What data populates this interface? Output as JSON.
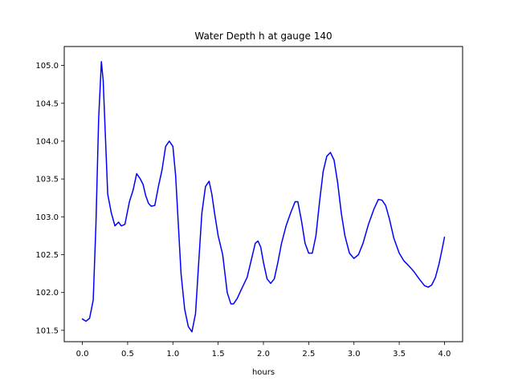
{
  "chart_data": {
    "type": "line",
    "title": "Water Depth h at gauge 140",
    "xlabel": "hours",
    "ylabel": "",
    "xlim": [
      -0.2,
      4.2
    ],
    "ylim": [
      101.35,
      105.25
    ],
    "x_ticks": [
      0.0,
      0.5,
      1.0,
      1.5,
      2.0,
      2.5,
      3.0,
      3.5,
      4.0
    ],
    "x_tick_labels": [
      "0.0",
      "0.5",
      "1.0",
      "1.5",
      "2.0",
      "2.5",
      "3.0",
      "3.5",
      "4.0"
    ],
    "y_ticks": [
      101.5,
      102.0,
      102.5,
      103.0,
      103.5,
      104.0,
      104.5,
      105.0
    ],
    "y_tick_labels": [
      "101.5",
      "102.0",
      "102.5",
      "103.0",
      "103.5",
      "104.0",
      "104.5",
      "105.0"
    ],
    "grid": false,
    "legend": "none",
    "series": [
      {
        "color": "#0000ff",
        "x": [
          0.0,
          0.04,
          0.08,
          0.12,
          0.15,
          0.18,
          0.21,
          0.23,
          0.25,
          0.28,
          0.32,
          0.36,
          0.4,
          0.43,
          0.47,
          0.52,
          0.56,
          0.6,
          0.64,
          0.67,
          0.7,
          0.73,
          0.76,
          0.8,
          0.84,
          0.88,
          0.92,
          0.96,
          1.0,
          1.03,
          1.06,
          1.09,
          1.13,
          1.17,
          1.21,
          1.25,
          1.28,
          1.32,
          1.36,
          1.4,
          1.43,
          1.46,
          1.5,
          1.55,
          1.6,
          1.64,
          1.67,
          1.71,
          1.76,
          1.82,
          1.87,
          1.91,
          1.94,
          1.97,
          2.0,
          2.04,
          2.08,
          2.12,
          2.16,
          2.2,
          2.25,
          2.3,
          2.35,
          2.38,
          2.42,
          2.46,
          2.5,
          2.54,
          2.58,
          2.62,
          2.66,
          2.7,
          2.74,
          2.78,
          2.82,
          2.86,
          2.9,
          2.95,
          3.0,
          3.05,
          3.1,
          3.16,
          3.22,
          3.27,
          3.31,
          3.35,
          3.39,
          3.44,
          3.5,
          3.55,
          3.6,
          3.66,
          3.72,
          3.78,
          3.82,
          3.86,
          3.9,
          3.94,
          3.97,
          4.0
        ],
        "y": [
          101.65,
          101.62,
          101.66,
          101.9,
          102.9,
          104.3,
          105.05,
          104.8,
          104.2,
          103.3,
          103.05,
          102.88,
          102.93,
          102.88,
          102.9,
          103.2,
          103.35,
          103.57,
          103.5,
          103.43,
          103.28,
          103.18,
          103.14,
          103.15,
          103.4,
          103.62,
          103.93,
          104.0,
          103.93,
          103.55,
          102.9,
          102.25,
          101.78,
          101.55,
          101.48,
          101.72,
          102.3,
          103.05,
          103.4,
          103.47,
          103.3,
          103.05,
          102.75,
          102.5,
          102.0,
          101.85,
          101.85,
          101.92,
          102.05,
          102.2,
          102.45,
          102.65,
          102.68,
          102.6,
          102.4,
          102.18,
          102.12,
          102.18,
          102.4,
          102.65,
          102.88,
          103.05,
          103.2,
          103.2,
          102.95,
          102.65,
          102.52,
          102.52,
          102.75,
          103.2,
          103.6,
          103.8,
          103.85,
          103.75,
          103.45,
          103.05,
          102.75,
          102.52,
          102.45,
          102.5,
          102.65,
          102.9,
          103.1,
          103.23,
          103.22,
          103.15,
          102.98,
          102.72,
          102.52,
          102.42,
          102.36,
          102.28,
          102.18,
          102.09,
          102.07,
          102.1,
          102.2,
          102.38,
          102.55,
          102.73
        ]
      }
    ]
  }
}
